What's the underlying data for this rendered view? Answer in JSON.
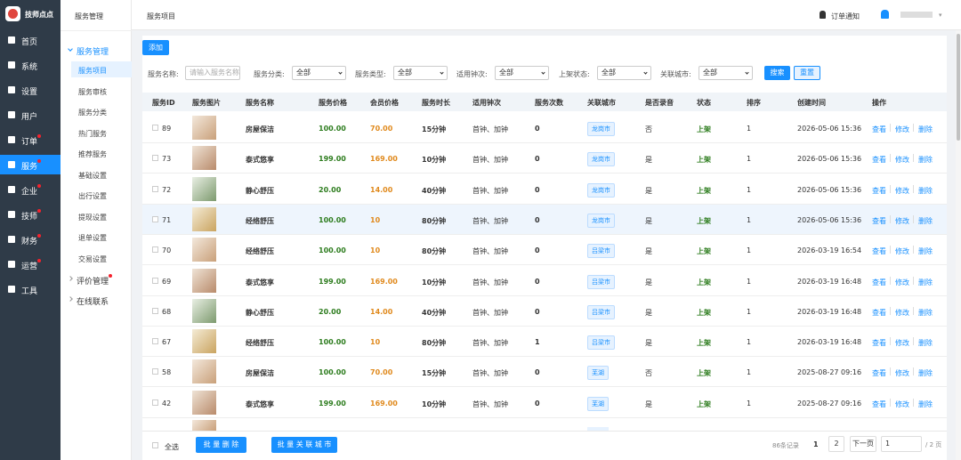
{
  "sidebar": {
    "brand": "技师点点",
    "menu": [
      {
        "label": "首页"
      },
      {
        "label": "系统"
      },
      {
        "label": "设置"
      },
      {
        "label": "用户"
      },
      {
        "label": "订单",
        "dot": true
      },
      {
        "label": "服务",
        "dot": true,
        "active": true
      },
      {
        "label": "企业",
        "dot": true
      },
      {
        "label": "技师",
        "dot": true
      },
      {
        "label": "财务",
        "dot": true
      },
      {
        "label": "运营",
        "dot": true
      },
      {
        "label": "工具"
      }
    ]
  },
  "submenu": {
    "title": "服务管理",
    "groups": [
      {
        "label": "服务管理",
        "open": true,
        "items": [
          "服务项目",
          "服务审核",
          "服务分类",
          "热门服务",
          "推荐服务",
          "基础设置",
          "出行设置",
          "提现设置",
          "退单设置",
          "交易设置"
        ]
      },
      {
        "label": "评价管理",
        "dot": true
      },
      {
        "label": "在线联系"
      }
    ]
  },
  "header": {
    "breadcrumb": "服务项目",
    "notice": "订单通知"
  },
  "toolbar": {
    "add": "添加",
    "filters": [
      {
        "label": "服务名称:",
        "placeholder": "请输入服务名称"
      },
      {
        "label": "服务分类:",
        "value": "全部"
      },
      {
        "label": "服务类型:",
        "value": "全部"
      },
      {
        "label": "适用钟次:",
        "value": "全部"
      },
      {
        "label": "上架状态:",
        "value": "全部"
      },
      {
        "label": "关联城市:",
        "value": "全部"
      }
    ],
    "search": "搜索",
    "reset": "重置"
  },
  "table": {
    "headers": [
      "服务ID",
      "服务图片",
      "服务名称",
      "服务价格",
      "会员价格",
      "服务时长",
      "适用钟次",
      "服务次数",
      "关联城市",
      "是否录音",
      "状态",
      "排序",
      "创建时间",
      "操作"
    ],
    "rows": [
      [
        "89",
        "房屋保洁",
        "100.00",
        "70.00",
        "15分钟",
        "首钟、加钟",
        "0",
        "龙岗市",
        "否",
        "上架",
        "1",
        "2026-05-06 15:36"
      ],
      [
        "73",
        "泰式悠享",
        "199.00",
        "169.00",
        "10分钟",
        "首钟、加钟",
        "0",
        "龙岗市",
        "是",
        "上架",
        "1",
        "2026-05-06 15:36"
      ],
      [
        "72",
        "静心舒压",
        "20.00",
        "14.00",
        "40分钟",
        "首钟、加钟",
        "0",
        "龙岗市",
        "是",
        "上架",
        "1",
        "2026-05-06 15:36"
      ],
      [
        "71",
        "经络舒压",
        "100.00",
        "10",
        "80分钟",
        "首钟、加钟",
        "0",
        "龙岗市",
        "是",
        "上架",
        "1",
        "2026-05-06 15:36"
      ],
      [
        "70",
        "经络舒压",
        "100.00",
        "10",
        "80分钟",
        "首钟、加钟",
        "0",
        "吕梁市",
        "是",
        "上架",
        "1",
        "2026-03-19 16:54"
      ],
      [
        "69",
        "泰式悠享",
        "199.00",
        "169.00",
        "10分钟",
        "首钟、加钟",
        "0",
        "吕梁市",
        "是",
        "上架",
        "1",
        "2026-03-19 16:48"
      ],
      [
        "68",
        "静心舒压",
        "20.00",
        "14.00",
        "40分钟",
        "首钟、加钟",
        "0",
        "吕梁市",
        "是",
        "上架",
        "1",
        "2026-03-19 16:48"
      ],
      [
        "67",
        "经络舒压",
        "100.00",
        "10",
        "80分钟",
        "首钟、加钟",
        "1",
        "吕梁市",
        "是",
        "上架",
        "1",
        "2026-03-19 16:48"
      ],
      [
        "58",
        "房屋保洁",
        "100.00",
        "70.00",
        "15分钟",
        "首钟、加钟",
        "0",
        "芜湖",
        "否",
        "上架",
        "1",
        "2025-08-27 09:16"
      ],
      [
        "42",
        "泰式悠享",
        "199.00",
        "169.00",
        "10分钟",
        "首钟、加钟",
        "0",
        "芜湖",
        "是",
        "上架",
        "1",
        "2025-08-27 09:16"
      ]
    ],
    "actions": [
      "查看",
      "修改",
      "删除"
    ]
  },
  "footer": {
    "select_all": "全选",
    "batch_delete": "批 量 删 除",
    "batch_city": "批 量 关 联 城 市",
    "total": "86条记录",
    "pages": [
      "1",
      "2"
    ],
    "next": "下一页",
    "page_input": "1",
    "page_count": "/ 2 页"
  }
}
